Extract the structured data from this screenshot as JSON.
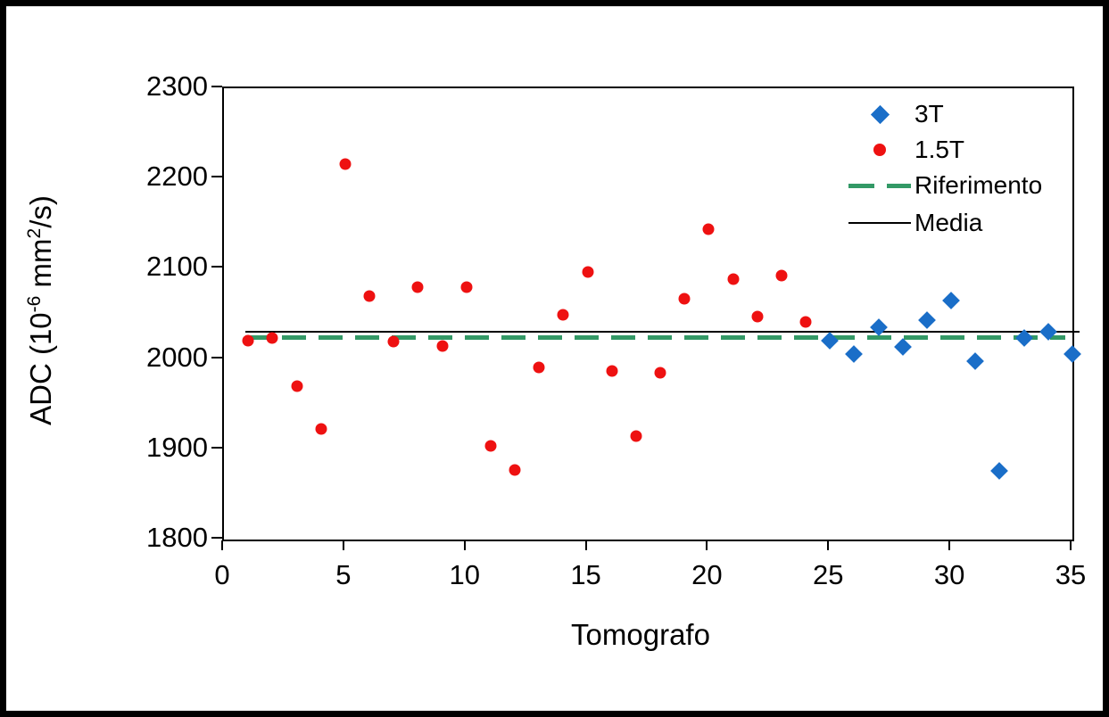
{
  "figure": {
    "background": "#ffffff",
    "border_color": "#000000"
  },
  "chart_data": {
    "type": "scatter",
    "title": "",
    "xlabel": "Tomografo",
    "ylabel": "ADC (10⁻⁶ mm²/s)",
    "ylabel_parts": {
      "prefix": "ADC (10",
      "sup1": "-6",
      "mid": " mm",
      "sup2": "2",
      "suffix": "/s)"
    },
    "xlim": [
      0,
      35
    ],
    "ylim": [
      1800,
      2300
    ],
    "xticks": [
      0,
      5,
      10,
      15,
      20,
      25,
      30,
      35
    ],
    "yticks": [
      1800,
      1900,
      2000,
      2100,
      2200,
      2300
    ],
    "grid": false,
    "legend_position": "top-right-inside",
    "series": [
      {
        "name": "3T",
        "marker": "diamond",
        "color": "#1a6ec8",
        "points": [
          [
            25,
            2020
          ],
          [
            26,
            2006
          ],
          [
            27,
            2035
          ],
          [
            28,
            2013
          ],
          [
            29,
            2043
          ],
          [
            30,
            2065
          ],
          [
            31,
            1998
          ],
          [
            32,
            1876
          ],
          [
            33,
            2023
          ],
          [
            34,
            2030
          ],
          [
            35,
            2006
          ]
        ]
      },
      {
        "name": "1.5T",
        "marker": "circle",
        "color": "#ee1111",
        "points": [
          [
            1,
            2020
          ],
          [
            2,
            2023
          ],
          [
            3,
            1970
          ],
          [
            4,
            1923
          ],
          [
            5,
            2216
          ],
          [
            6,
            2070
          ],
          [
            7,
            2019
          ],
          [
            8,
            2080
          ],
          [
            9,
            2014
          ],
          [
            10,
            2080
          ],
          [
            11,
            1904
          ],
          [
            12,
            1877
          ],
          [
            13,
            1991
          ],
          [
            14,
            2049
          ],
          [
            15,
            2096
          ],
          [
            16,
            1987
          ],
          [
            17,
            1915
          ],
          [
            18,
            1985
          ],
          [
            19,
            2067
          ],
          [
            20,
            2144
          ],
          [
            21,
            2089
          ],
          [
            22,
            2047
          ],
          [
            23,
            2092
          ],
          [
            24,
            2041
          ]
        ]
      }
    ],
    "lines": [
      {
        "name": "Riferimento",
        "style": "dashed",
        "color": "#339966",
        "value": 2024,
        "x_start": 0.9,
        "x_end": 34.7,
        "thickness": 5
      },
      {
        "name": "Media",
        "style": "solid",
        "color": "#000000",
        "value": 2030,
        "x_start": 0.9,
        "x_end": 35.3,
        "thickness": 2
      }
    ]
  },
  "legend": {
    "items": [
      {
        "label": "3T"
      },
      {
        "label": "1.5T"
      },
      {
        "label": "Riferimento"
      },
      {
        "label": "Media"
      }
    ]
  }
}
